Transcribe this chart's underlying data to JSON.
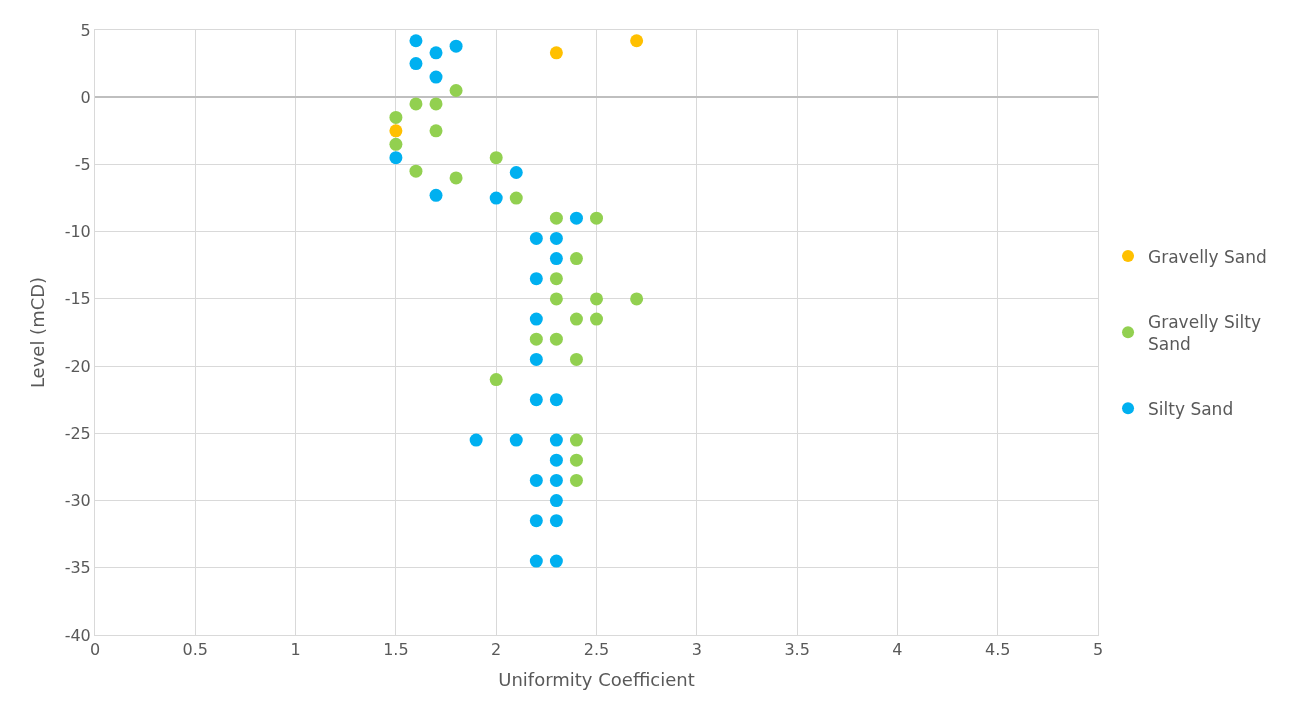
{
  "chart_data": {
    "type": "scatter",
    "xlabel": "Uniformity Coefficient",
    "ylabel": "Level (mCD)",
    "xlim": [
      0,
      5
    ],
    "xticks": [
      0,
      0.5,
      1,
      1.5,
      2,
      2.5,
      3,
      3.5,
      4,
      4.5,
      5
    ],
    "ylim": [
      -40,
      5
    ],
    "yticks": [
      -40,
      -35,
      -30,
      -25,
      -20,
      -15,
      -10,
      -5,
      0,
      5
    ],
    "grid": true,
    "legend": "right",
    "marker": "circle",
    "series": [
      {
        "name": "Gravelly Sand",
        "color": "#ffc000",
        "x": [
          2.3,
          2.7,
          1.5
        ],
        "values": [
          3.3,
          4.2,
          -2.5
        ]
      },
      {
        "name": "Gravelly Silty Sand",
        "color": "#92d050",
        "x": [
          1.8,
          1.6,
          1.7,
          1.5,
          1.7,
          1.5,
          2.0,
          1.6,
          1.8,
          2.1,
          2.3,
          2.5,
          2.4,
          2.3,
          2.3,
          2.5,
          2.7,
          2.4,
          2.5,
          2.2,
          2.3,
          2.4,
          2.0,
          2.4,
          2.4,
          2.4
        ],
        "values": [
          0.5,
          -0.5,
          -0.5,
          -1.5,
          -2.5,
          -3.5,
          -4.5,
          -5.5,
          -6,
          -7.5,
          -9,
          -9,
          -12,
          -13.5,
          -15,
          -15,
          -15,
          -16.5,
          -16.5,
          -18,
          -18,
          -19.5,
          -21,
          -25.5,
          -27,
          -28.5
        ]
      },
      {
        "name": "Silty Sand",
        "color": "#00b0f0",
        "x": [
          1.6,
          1.7,
          1.8,
          1.6,
          1.7,
          1.5,
          2.1,
          1.7,
          2.0,
          2.4,
          2.2,
          2.3,
          2.3,
          2.2,
          2.2,
          2.2,
          2.2,
          2.3,
          1.9,
          2.1,
          2.3,
          2.3,
          2.2,
          2.3,
          2.3,
          2.2,
          2.3,
          2.2,
          2.3
        ],
        "values": [
          4.2,
          3.3,
          3.8,
          2.5,
          1.5,
          -4.5,
          -5.6,
          -7.3,
          -7.5,
          -9,
          -10.5,
          -10.5,
          -12,
          -13.5,
          -16.5,
          -19.5,
          -22.5,
          -22.5,
          -25.5,
          -25.5,
          -25.5,
          -27,
          -28.5,
          -28.5,
          -30,
          -31.5,
          -31.5,
          -34.5,
          -34.5
        ]
      }
    ]
  }
}
